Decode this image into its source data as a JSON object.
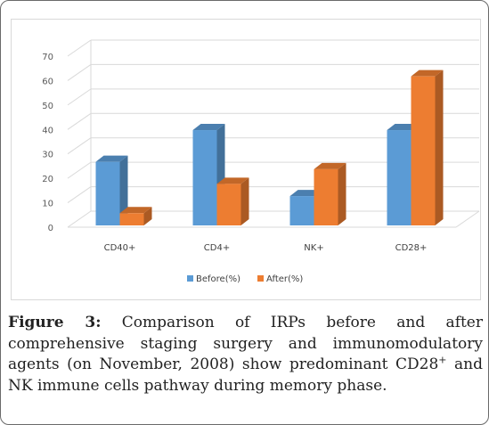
{
  "chart_data": {
    "type": "bar",
    "categories": [
      "CD40+",
      "CD4+",
      "NK+",
      "CD28+"
    ],
    "series": [
      {
        "name": "Before(%)",
        "values": [
          26,
          39,
          12,
          39
        ],
        "color": "#5B9BD5"
      },
      {
        "name": "After(%)",
        "values": [
          5,
          17,
          23,
          61
        ],
        "color": "#ED7D31"
      }
    ],
    "yticks": [
      "0",
      "10",
      "20",
      "30",
      "40",
      "50",
      "60",
      "70"
    ],
    "ylim": [
      0,
      70
    ],
    "three_d": true,
    "grid": true,
    "legend_position": "bottom"
  },
  "caption": {
    "label": "Figure 3:",
    "text_before_sup": " Comparison of IRPs before and after comprehensive staging surgery and immunomodulatory agents (on November, 2008) show predominant CD28",
    "sup": "+",
    "text_after_sup": " and NK immune cells pathway during memory phase."
  }
}
